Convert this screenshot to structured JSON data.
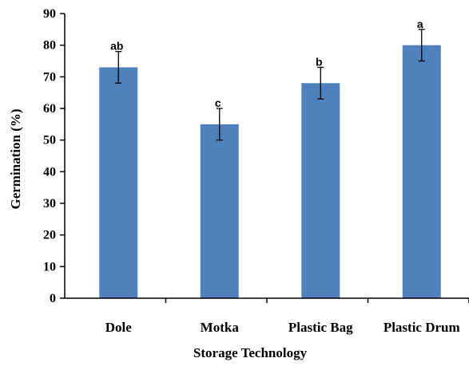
{
  "chart_data": {
    "type": "bar",
    "categories": [
      "Dole",
      "Motka",
      "Plastic Bag",
      "Plastic Drum"
    ],
    "values": [
      73,
      55,
      68,
      80
    ],
    "error": [
      5,
      5,
      5,
      5
    ],
    "significance_labels": [
      "ab",
      "c",
      "b",
      "a"
    ],
    "xlabel": "Storage Technology",
    "ylabel": "Germination (%)",
    "ylim": [
      0,
      90
    ],
    "yticks": [
      0,
      10,
      20,
      30,
      40,
      50,
      60,
      70,
      80,
      90
    ],
    "grid": false,
    "legend": "none",
    "bar_color": "#4f81bd"
  }
}
